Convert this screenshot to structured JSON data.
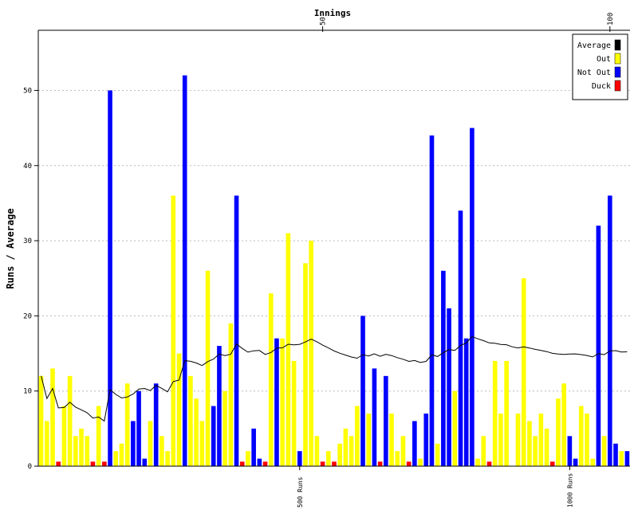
{
  "chart_data": {
    "type": "bar",
    "title": "Innings",
    "ylabel": "Runs / Average",
    "ylim": [
      0,
      58
    ],
    "y_ticks": [
      0,
      10,
      20,
      30,
      40,
      50
    ],
    "grid": "horizontal-dotted",
    "top_axis_ticks": [
      {
        "innings": 50,
        "label": "50"
      },
      {
        "innings": 100,
        "label": "100"
      }
    ],
    "bottom_axis_ticks": [
      {
        "innings": 46,
        "label": "500 Runs"
      },
      {
        "innings": 93,
        "label": "1000 Runs"
      }
    ],
    "legend": {
      "placement": "top-right",
      "entries": [
        {
          "name": "Average",
          "color": "#000000"
        },
        {
          "name": "Out",
          "color": "#ffff00"
        },
        {
          "name": "Not Out",
          "color": "#0000ff"
        },
        {
          "name": "Duck",
          "color": "#ff0000"
        }
      ]
    },
    "innings": [
      {
        "runs": 12,
        "status": "out"
      },
      {
        "runs": 6,
        "status": "out"
      },
      {
        "runs": 13,
        "status": "out"
      },
      {
        "runs": 0,
        "status": "duck"
      },
      {
        "runs": 8,
        "status": "out"
      },
      {
        "runs": 12,
        "status": "out"
      },
      {
        "runs": 4,
        "status": "out"
      },
      {
        "runs": 5,
        "status": "out"
      },
      {
        "runs": 4,
        "status": "out"
      },
      {
        "runs": 0,
        "status": "duck"
      },
      {
        "runs": 8,
        "status": "out"
      },
      {
        "runs": 0,
        "status": "duck"
      },
      {
        "runs": 50,
        "status": "not out"
      },
      {
        "runs": 2,
        "status": "out"
      },
      {
        "runs": 3,
        "status": "out"
      },
      {
        "runs": 11,
        "status": "out"
      },
      {
        "runs": 6,
        "status": "not out"
      },
      {
        "runs": 10,
        "status": "not out"
      },
      {
        "runs": 1,
        "status": "not out"
      },
      {
        "runs": 6,
        "status": "out"
      },
      {
        "runs": 11,
        "status": "not out"
      },
      {
        "runs": 4,
        "status": "out"
      },
      {
        "runs": 2,
        "status": "out"
      },
      {
        "runs": 36,
        "status": "out"
      },
      {
        "runs": 15,
        "status": "out"
      },
      {
        "runs": 52,
        "status": "not out"
      },
      {
        "runs": 12,
        "status": "out"
      },
      {
        "runs": 9,
        "status": "out"
      },
      {
        "runs": 6,
        "status": "out"
      },
      {
        "runs": 26,
        "status": "out"
      },
      {
        "runs": 8,
        "status": "not out"
      },
      {
        "runs": 16,
        "status": "not out"
      },
      {
        "runs": 10,
        "status": "out"
      },
      {
        "runs": 19,
        "status": "out"
      },
      {
        "runs": 36,
        "status": "not out"
      },
      {
        "runs": 0,
        "status": "duck"
      },
      {
        "runs": 2,
        "status": "out"
      },
      {
        "runs": 5,
        "status": "not out"
      },
      {
        "runs": 1,
        "status": "not out"
      },
      {
        "runs": 0,
        "status": "duck"
      },
      {
        "runs": 23,
        "status": "out"
      },
      {
        "runs": 17,
        "status": "not out"
      },
      {
        "runs": 17,
        "status": "out"
      },
      {
        "runs": 31,
        "status": "out"
      },
      {
        "runs": 14,
        "status": "out"
      },
      {
        "runs": 2,
        "status": "not out"
      },
      {
        "runs": 27,
        "status": "out"
      },
      {
        "runs": 30,
        "status": "out"
      },
      {
        "runs": 4,
        "status": "out"
      },
      {
        "runs": 0,
        "status": "duck"
      },
      {
        "runs": 2,
        "status": "out"
      },
      {
        "runs": 0,
        "status": "duck"
      },
      {
        "runs": 3,
        "status": "out"
      },
      {
        "runs": 5,
        "status": "out"
      },
      {
        "runs": 4,
        "status": "out"
      },
      {
        "runs": 8,
        "status": "out"
      },
      {
        "runs": 20,
        "status": "not out"
      },
      {
        "runs": 7,
        "status": "out"
      },
      {
        "runs": 13,
        "status": "not out"
      },
      {
        "runs": 0,
        "status": "duck"
      },
      {
        "runs": 12,
        "status": "not out"
      },
      {
        "runs": 7,
        "status": "out"
      },
      {
        "runs": 2,
        "status": "out"
      },
      {
        "runs": 4,
        "status": "out"
      },
      {
        "runs": 0,
        "status": "duck"
      },
      {
        "runs": 6,
        "status": "not out"
      },
      {
        "runs": 1,
        "status": "out"
      },
      {
        "runs": 7,
        "status": "not out"
      },
      {
        "runs": 44,
        "status": "not out"
      },
      {
        "runs": 3,
        "status": "out"
      },
      {
        "runs": 26,
        "status": "not out"
      },
      {
        "runs": 21,
        "status": "not out"
      },
      {
        "runs": 10,
        "status": "out"
      },
      {
        "runs": 34,
        "status": "not out"
      },
      {
        "runs": 17,
        "status": "not out"
      },
      {
        "runs": 45,
        "status": "not out"
      },
      {
        "runs": 1,
        "status": "out"
      },
      {
        "runs": 4,
        "status": "out"
      },
      {
        "runs": 0,
        "status": "duck"
      },
      {
        "runs": 14,
        "status": "out"
      },
      {
        "runs": 7,
        "status": "out"
      },
      {
        "runs": 14,
        "status": "out"
      },
      {
        "runs": 0,
        "status": "out"
      },
      {
        "runs": 7,
        "status": "out"
      },
      {
        "runs": 25,
        "status": "out"
      },
      {
        "runs": 6,
        "status": "out"
      },
      {
        "runs": 4,
        "status": "out"
      },
      {
        "runs": 7,
        "status": "out"
      },
      {
        "runs": 5,
        "status": "out"
      },
      {
        "runs": 0,
        "status": "duck"
      },
      {
        "runs": 9,
        "status": "out"
      },
      {
        "runs": 11,
        "status": "out"
      },
      {
        "runs": 4,
        "status": "not out"
      },
      {
        "runs": 1,
        "status": "not out"
      },
      {
        "runs": 8,
        "status": "out"
      },
      {
        "runs": 7,
        "status": "out"
      },
      {
        "runs": 1,
        "status": "out"
      },
      {
        "runs": 32,
        "status": "not out"
      },
      {
        "runs": 4,
        "status": "out"
      },
      {
        "runs": 36,
        "status": "not out"
      },
      {
        "runs": 3,
        "status": "not out"
      },
      {
        "runs": 2,
        "status": "out"
      },
      {
        "runs": 2,
        "status": "not out"
      }
    ]
  }
}
